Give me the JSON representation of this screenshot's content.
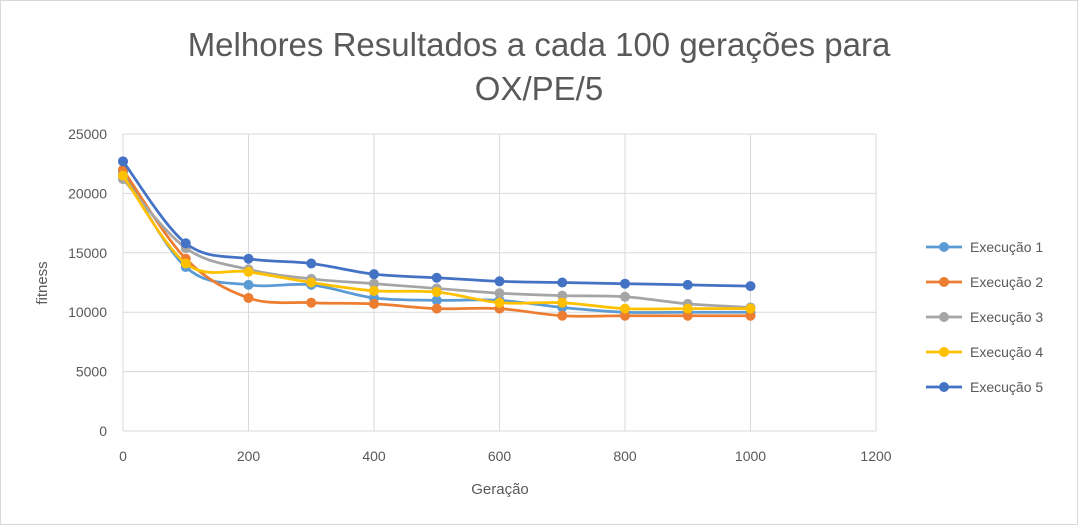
{
  "chart_data": {
    "type": "line",
    "title_lines": [
      "Melhores Resultados a cada 100 gerações para",
      "OX/PE/5"
    ],
    "xlabel": "Geração",
    "ylabel": "fitness",
    "xlim": [
      0,
      1200
    ],
    "ylim": [
      0,
      25000
    ],
    "x_ticks": [
      0,
      200,
      400,
      600,
      800,
      1000,
      1200
    ],
    "y_ticks": [
      0,
      5000,
      10000,
      15000,
      20000,
      25000
    ],
    "grid": "vertical and horizontal",
    "legend_position": "right",
    "x": [
      0,
      100,
      200,
      300,
      400,
      500,
      600,
      700,
      800,
      900,
      1000
    ],
    "series": [
      {
        "name": "Execução 1",
        "color": "#5b9bd5",
        "values": [
          21800,
          13800,
          12300,
          12300,
          11200,
          11000,
          11000,
          10400,
          10000,
          10000,
          10000
        ]
      },
      {
        "name": "Execução 2",
        "color": "#ed7d31",
        "values": [
          22000,
          14500,
          11200,
          10800,
          10700,
          10300,
          10300,
          9700,
          9700,
          9700,
          9700
        ]
      },
      {
        "name": "Execução 3",
        "color": "#a5a5a5",
        "values": [
          21200,
          15400,
          13600,
          12800,
          12400,
          12000,
          11600,
          11400,
          11300,
          10700,
          10400
        ]
      },
      {
        "name": "Execução 4",
        "color": "#ffc000",
        "values": [
          21500,
          14100,
          13400,
          12500,
          11800,
          11700,
          10800,
          10800,
          10300,
          10300,
          10300
        ]
      },
      {
        "name": "Execução 5",
        "color": "#4472c4",
        "values": [
          22700,
          15800,
          14500,
          14100,
          13200,
          12900,
          12600,
          12500,
          12400,
          12300,
          12200
        ]
      }
    ]
  }
}
